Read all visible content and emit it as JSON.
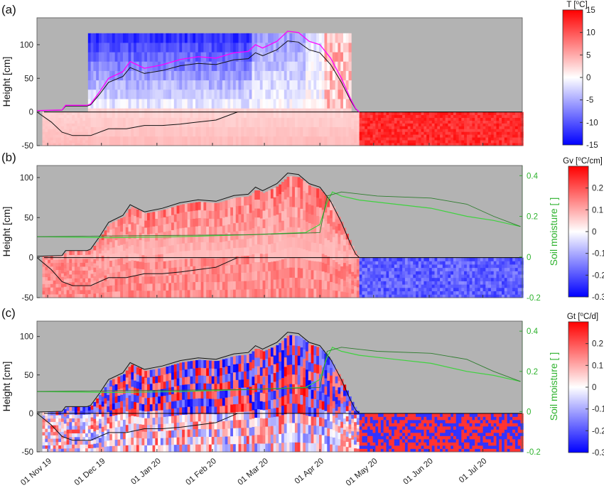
{
  "chart_data": [
    {
      "panel_label": "(a)",
      "type": "heatmap",
      "ylabel": "Height [cm]",
      "yticks": [
        -50,
        0,
        50,
        100
      ],
      "ylim": [
        -50,
        140
      ],
      "colorbar": {
        "title": "T [⁰C]",
        "ticks": [
          -15,
          -10,
          -5,
          0,
          5,
          10,
          15
        ],
        "range": [
          -15,
          15
        ],
        "colormap": "blue-white-red"
      },
      "snow_depth_cm": [
        [
          0,
          2
        ],
        [
          14,
          3
        ],
        [
          16,
          10
        ],
        [
          28,
          10
        ],
        [
          30,
          12
        ],
        [
          35,
          30
        ],
        [
          40,
          50
        ],
        [
          48,
          60
        ],
        [
          52,
          75
        ],
        [
          60,
          65
        ],
        [
          70,
          70
        ],
        [
          80,
          78
        ],
        [
          90,
          82
        ],
        [
          100,
          80
        ],
        [
          110,
          88
        ],
        [
          118,
          90
        ],
        [
          122,
          100
        ],
        [
          126,
          95
        ],
        [
          134,
          105
        ],
        [
          140,
          120
        ],
        [
          146,
          118
        ],
        [
          152,
          105
        ],
        [
          158,
          100
        ],
        [
          164,
          80
        ],
        [
          170,
          50
        ],
        [
          175,
          20
        ],
        [
          178,
          5
        ],
        [
          180,
          0
        ]
      ],
      "soil_freeze_depth_cm": [
        [
          0,
          0
        ],
        [
          8,
          -15
        ],
        [
          14,
          -30
        ],
        [
          20,
          -35
        ],
        [
          30,
          -35
        ],
        [
          40,
          -25
        ],
        [
          50,
          -25
        ],
        [
          60,
          -20
        ],
        [
          70,
          -20
        ],
        [
          80,
          -18
        ],
        [
          90,
          -15
        ],
        [
          100,
          -12
        ],
        [
          112,
          0
        ]
      ]
    },
    {
      "panel_label": "(b)",
      "type": "heatmap",
      "ylabel": "Height [cm]",
      "yticks": [
        -50,
        0,
        50,
        100
      ],
      "ylim": [
        -50,
        115
      ],
      "secondary_ylabel": "Soil moisture [ ]",
      "secondary_yticks": [
        -0.2,
        0,
        0.2,
        0.4
      ],
      "secondary_ylim": [
        -0.2,
        0.45
      ],
      "colorbar": {
        "title": "Gv [⁰C/cm]",
        "ticks": [
          -0.3,
          -0.2,
          -0.1,
          0,
          0.1,
          0.2
        ],
        "range": [
          -0.3,
          0.3
        ],
        "colormap": "blue-white-red"
      },
      "soil_moisture": [
        [
          0,
          0.1
        ],
        [
          40,
          0.095
        ],
        [
          80,
          0.1
        ],
        [
          120,
          0.11
        ],
        [
          150,
          0.12
        ],
        [
          158,
          0.16
        ],
        [
          162,
          0.27
        ],
        [
          165,
          0.32
        ],
        [
          170,
          0.3
        ],
        [
          180,
          0.28
        ],
        [
          200,
          0.26
        ],
        [
          220,
          0.24
        ],
        [
          240,
          0.2
        ],
        [
          255,
          0.18
        ],
        [
          270,
          0.15
        ]
      ],
      "soil_moisture_2": [
        [
          0,
          0.1
        ],
        [
          120,
          0.11
        ],
        [
          158,
          0.12
        ],
        [
          162,
          0.3
        ],
        [
          170,
          0.32
        ],
        [
          190,
          0.3
        ],
        [
          220,
          0.29
        ],
        [
          240,
          0.26
        ],
        [
          255,
          0.2
        ],
        [
          270,
          0.15
        ]
      ]
    },
    {
      "panel_label": "(c)",
      "type": "heatmap",
      "ylabel": "Height [cm]",
      "yticks": [
        -50,
        0,
        50,
        100
      ],
      "ylim": [
        -50,
        120
      ],
      "secondary_ylabel": "Soil moisture [ ]",
      "secondary_yticks": [
        -0.2,
        0,
        0.2,
        0.4
      ],
      "secondary_ylim": [
        -0.2,
        0.45
      ],
      "colorbar": {
        "title": "Gt [⁰C/d]",
        "ticks": [
          -0.3,
          -0.2,
          -0.1,
          0,
          0.1,
          0.2
        ],
        "range": [
          -0.3,
          0.3
        ],
        "colormap": "blue-white-red"
      }
    }
  ],
  "x_axis": {
    "tick_labels": [
      "01 Nov 19",
      "01 Dec 19",
      "01 Jan 20",
      "01 Feb 20",
      "01 Mar 20",
      "01 Apr 20",
      "01 May 20",
      "01 Jun 20",
      "01 Jul 20"
    ],
    "tick_days": [
      6,
      36,
      67,
      98,
      127,
      158,
      188,
      219,
      249
    ],
    "range_days": [
      0,
      271
    ]
  },
  "colors": {
    "negative": "#0000ff",
    "zero": "#ffffff",
    "positive": "#ff0000",
    "no_data": "#b3b3b3",
    "snow_line": "#ff00ff",
    "moisture": "#2db22d"
  }
}
